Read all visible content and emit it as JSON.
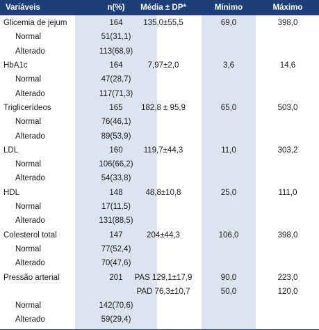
{
  "header": [
    "Variáveis",
    "n(%)",
    "Média ± DP*",
    "Mínimo",
    "Máximo"
  ],
  "rows": [
    {
      "label": "Glicemia de jejum",
      "n": "164",
      "mean": "135,0±55,5",
      "min": "69,0",
      "max": "398,0",
      "sub": false
    },
    {
      "label": "Normal",
      "n": "51(31,1)",
      "mean": "",
      "min": "",
      "max": "",
      "sub": true
    },
    {
      "label": "Alterado",
      "n": "113(68,9)",
      "mean": "",
      "min": "",
      "max": "",
      "sub": true
    },
    {
      "label": "HbA1c",
      "n": "164",
      "mean": "7,97±2,0",
      "min": "3,6",
      "max": "14,6",
      "sub": false
    },
    {
      "label": "Normal",
      "n": "47(28,7)",
      "mean": "",
      "min": "",
      "max": "",
      "sub": true
    },
    {
      "label": "Alterado",
      "n": "117(71,3)",
      "mean": "",
      "min": "",
      "max": "",
      "sub": true
    },
    {
      "label": "Triglicerídeos",
      "n": "165",
      "mean": "182,8 ± 95,9",
      "min": "65,0",
      "max": "503,0",
      "sub": false
    },
    {
      "label": "Normal",
      "n": "76(46,1)",
      "mean": "",
      "min": "",
      "max": "",
      "sub": true
    },
    {
      "label": "Alterado",
      "n": "89(53,9)",
      "mean": "",
      "min": "",
      "max": "",
      "sub": true
    },
    {
      "label": "LDL",
      "n": "160",
      "mean": "119,7±44,3",
      "min": "11,0",
      "max": "303,2",
      "sub": false
    },
    {
      "label": "Normal",
      "n": "106(66,2)",
      "mean": "",
      "min": "",
      "max": "",
      "sub": true
    },
    {
      "label": "Alterado",
      "n": "54(33,8)",
      "mean": "",
      "min": "",
      "max": "",
      "sub": true
    },
    {
      "label": "HDL",
      "n": "148",
      "mean": "48,8±10,8",
      "min": "25,0",
      "max": "111,0",
      "sub": false
    },
    {
      "label": "Normal",
      "n": "17(11,5)",
      "mean": "",
      "min": "",
      "max": "",
      "sub": true
    },
    {
      "label": "Alterado",
      "n": "131(88,5)",
      "mean": "",
      "min": "",
      "max": "",
      "sub": true
    },
    {
      "label": "Colesterol total",
      "n": "147",
      "mean": "204±44,3",
      "min": "106,0",
      "max": "398,0",
      "sub": false
    },
    {
      "label": "Normal",
      "n": "77(52,4)",
      "mean": "",
      "min": "",
      "max": "",
      "sub": true
    },
    {
      "label": "Alterado",
      "n": "70(47,6)",
      "mean": "",
      "min": "",
      "max": "",
      "sub": true
    },
    {
      "label": "Pressão arterial",
      "n": "201",
      "mean": "PAS 129,1±17,9",
      "min": "90,0",
      "max": "223,0",
      "sub": false
    },
    {
      "label": "",
      "n": "",
      "mean": "PAD 76,3±10,7",
      "min": "50,0",
      "max": "120,0",
      "sub": false
    },
    {
      "label": "Normal",
      "n": "142(70,6)",
      "mean": "",
      "min": "",
      "max": "",
      "sub": true
    },
    {
      "label": "Alterado",
      "n": "59(29,4)",
      "mean": "",
      "min": "",
      "max": "",
      "sub": true
    }
  ]
}
